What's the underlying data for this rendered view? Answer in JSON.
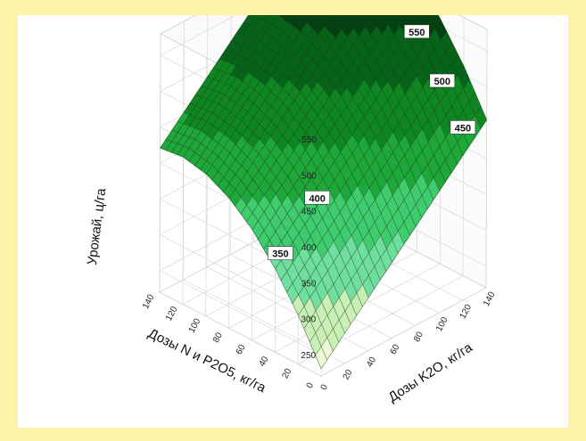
{
  "chart_data": {
    "type": "surface3d",
    "title": "",
    "zlabel": "Урожай, ц/га",
    "xlabel": "Дозы N и P2O5, кг/га",
    "ylabel": "Дозы K2O, кг/га",
    "x_ticks": [
      "0",
      "20",
      "40",
      "60",
      "80",
      "100",
      "120",
      "140"
    ],
    "y_ticks": [
      "0",
      "20",
      "40",
      "60",
      "80",
      "100",
      "120",
      "140"
    ],
    "z_ticks": [
      "250",
      "300",
      "350",
      "400",
      "450",
      "500",
      "550"
    ],
    "xlim": [
      0,
      140
    ],
    "ylim": [
      0,
      140
    ],
    "zlim": [
      220,
      580
    ],
    "surface": {
      "x": [
        0,
        20,
        40,
        60,
        80,
        100,
        120,
        140
      ],
      "y": [
        0,
        20,
        40,
        60,
        80,
        100,
        120,
        140
      ],
      "z": [
        [
          230,
          262,
          294,
          326,
          358,
          390,
          422,
          454
        ],
        [
          288,
          320,
          352,
          384,
          416,
          448,
          480,
          512
        ],
        [
          336,
          368,
          400,
          432,
          464,
          496,
          528,
          560
        ],
        [
          374,
          406,
          438,
          470,
          502,
          534,
          566,
          598
        ],
        [
          401,
          433,
          465,
          497,
          529,
          561,
          593,
          625
        ],
        [
          418,
          450,
          482,
          514,
          546,
          578,
          610,
          642
        ],
        [
          425,
          457,
          489,
          521,
          553,
          585,
          617,
          649
        ],
        [
          421,
          453,
          485,
          517,
          549,
          581,
          613,
          645
        ]
      ]
    },
    "contour_labels": [
      "250",
      "300",
      "350",
      "400",
      "450",
      "500",
      "550"
    ],
    "contour_colors": [
      "#eef8d6",
      "#c8efb4",
      "#6fdfa0",
      "#3fcc6e",
      "#1ea83a",
      "#0e8722",
      "#05641a",
      "#024212"
    ]
  }
}
